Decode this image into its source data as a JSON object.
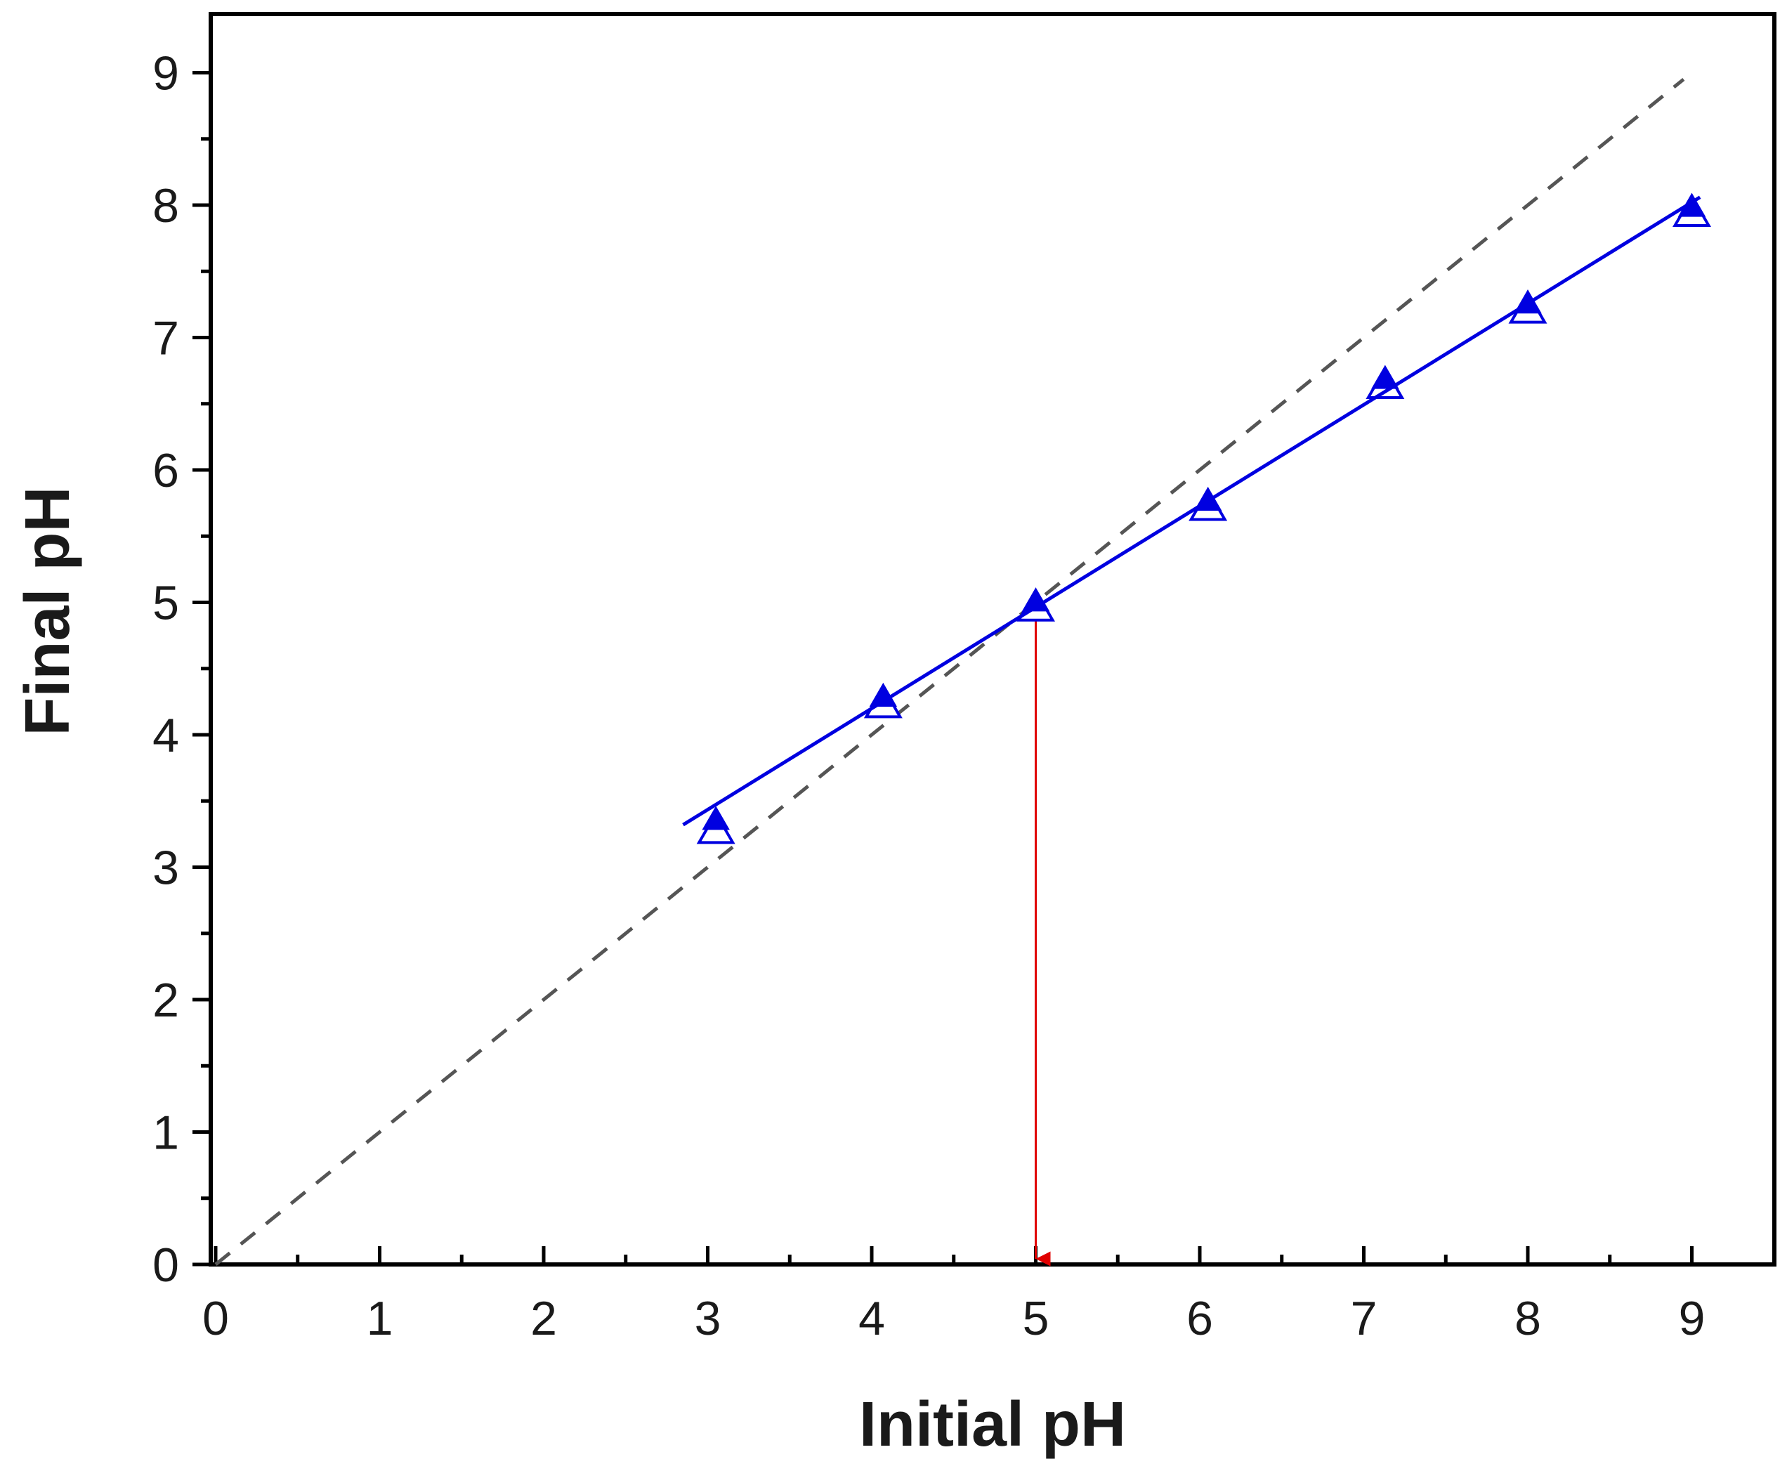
{
  "chart_data": {
    "type": "scatter",
    "xlabel": "Initial pH",
    "ylabel": "Final pH",
    "xlim": [
      0,
      9.5
    ],
    "ylim": [
      0,
      9.5
    ],
    "x_ticks": [
      0,
      1,
      2,
      3,
      4,
      5,
      6,
      7,
      8,
      9
    ],
    "y_ticks": [
      0,
      1,
      2,
      3,
      4,
      5,
      6,
      7,
      8,
      9
    ],
    "minor_tick_step": 0.5,
    "grid": false,
    "legend": "none",
    "series": [
      {
        "marker": "filled-triangle",
        "color": "#0000e0",
        "x": [
          3.05,
          4.07,
          5.0,
          6.05,
          7.13,
          8.0,
          9.0
        ],
        "y": [
          3.35,
          4.28,
          5.0,
          5.76,
          6.68,
          7.25,
          7.98
        ]
      },
      {
        "marker": "open-triangle",
        "color": "#0000e0",
        "x": [
          3.05,
          4.07,
          5.0,
          6.05,
          7.13,
          8.0,
          9.0
        ],
        "y": [
          3.27,
          4.22,
          4.95,
          5.71,
          6.63,
          7.2,
          7.93
        ]
      }
    ],
    "fit_line": {
      "color": "#0000e0",
      "x": [
        2.85,
        9.05
      ],
      "y": [
        3.32,
        8.06
      ]
    },
    "reference_line": {
      "style": "dashed",
      "color": "#555555",
      "x": [
        0,
        8.95
      ],
      "y": [
        0,
        8.95
      ]
    },
    "arrow": {
      "color": "#e00000",
      "x": [
        5.0,
        5.0
      ],
      "y": [
        4.95,
        0.0
      ]
    }
  }
}
